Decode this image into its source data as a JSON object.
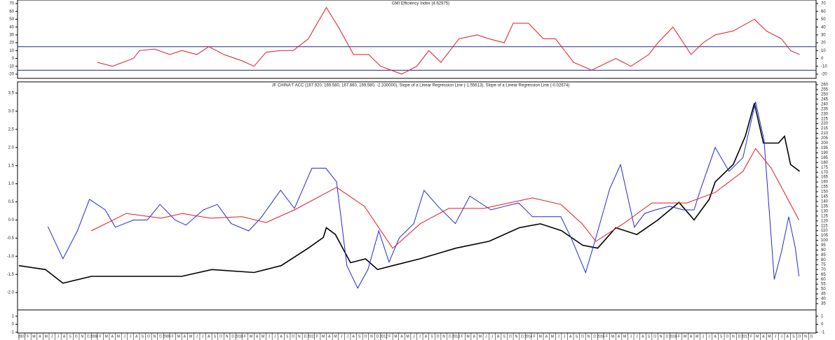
{
  "chart_data": [
    {
      "type": "line",
      "title": "GMI Efficiency Index (4.62975)",
      "ylim": [
        -25.4,
        74.5
      ],
      "yticks": [
        70,
        60,
        50,
        40,
        30,
        20,
        10,
        0,
        -10,
        -20
      ],
      "hlines": [
        15,
        -15
      ],
      "hline_color": "#1f2a8c",
      "series": [
        {
          "name": "GMI Efficiency Index",
          "color": "#e31a1c",
          "x": [
            13,
            15.5,
            19,
            20,
            22.5,
            25,
            27,
            29.5,
            31.5,
            34,
            37,
            39,
            41,
            43.5,
            45.5,
            48,
            51,
            53,
            55.5,
            58,
            60,
            63.5,
            66,
            68,
            70,
            73,
            76,
            78,
            80.5,
            82,
            84.5,
            87,
            89,
            92,
            95,
            99,
            101.5,
            104.5,
            106,
            108.5,
            111.5,
            113.5,
            115.5,
            118.5,
            122,
            124,
            126.5,
            128,
            129.5
          ],
          "values": [
            -5,
            -10,
            0,
            10,
            12,
            5,
            10,
            5,
            15,
            5,
            -3,
            -10,
            8,
            10,
            10,
            25,
            65,
            40,
            5,
            5,
            -10,
            -20,
            -10,
            10,
            -5,
            25,
            30,
            25,
            20,
            45,
            45,
            25,
            25,
            -5,
            -15,
            0,
            -10,
            5,
            20,
            40,
            5,
            20,
            30,
            35,
            50,
            35,
            25,
            10,
            5
          ]
        }
      ]
    },
    {
      "type": "line",
      "title": "JF CHINA T ACC (167.920, 169.580, 167.660, 169.580, -2.330000), Slope of a Linear Regression Line (-1.55613), Slope of a Linear Regression Line (-0.02674)",
      "ylim": [
        -2.48,
        3.81
      ],
      "yticks": [
        {
          "value": -2,
          "label": "-2.0"
        },
        -1.5,
        {
          "value": -1,
          "label": "-1.0"
        },
        -0.5,
        {
          "value": 0,
          "label": "0.0"
        },
        0.5,
        {
          "value": 1,
          "label": "1.0"
        },
        1.5,
        {
          "value": 2,
          "label": "2.0"
        },
        2.5,
        {
          "value": 3,
          "label": "3.0"
        },
        3.5
      ],
      "y2lim": [
        28.5,
        262.9
      ],
      "y2ticks": [
        35,
        40,
        45,
        50,
        55,
        60,
        65,
        70,
        75,
        80,
        85,
        90,
        95,
        100,
        105,
        110,
        115,
        120,
        125,
        130,
        135,
        140,
        145,
        150,
        155,
        160,
        165,
        170,
        175,
        180,
        185,
        190,
        195,
        200,
        205,
        210,
        215,
        220,
        225,
        230,
        235,
        240,
        245,
        250,
        255,
        260
      ],
      "series": [
        {
          "name": "JF CHINA T ACC",
          "color": "#000000",
          "axis": "y2",
          "x": [
            0,
            4.4,
            7.3,
            12,
            20,
            27,
            32,
            39,
            43.5,
            48,
            50.5,
            51,
            52.5,
            55,
            57.5,
            59.5,
            62,
            66.5,
            72.5,
            78,
            83,
            86.5,
            90,
            93.5,
            96,
            99,
            102.5,
            106,
            109.5,
            112,
            114.5,
            115.5,
            118.5,
            120.5,
            122,
            123.5,
            126,
            127,
            128,
            129.5
          ],
          "values": [
            74,
            70,
            56,
            63,
            63,
            63,
            70,
            67,
            74,
            92,
            103,
            113,
            106,
            77,
            81,
            70,
            74,
            81,
            92,
            99,
            113,
            117,
            110,
            95,
            92,
            113,
            106,
            121,
            139,
            121,
            142,
            160,
            178,
            207,
            241,
            200,
            200,
            207,
            178,
            171
          ]
        },
        {
          "name": "Slope of a Linear Regression Line (-1.55613)",
          "color": "#1f2ad4",
          "x": [
            4.8,
            7.3,
            9.7,
            11.7,
            14.3,
            16,
            19,
            21.3,
            23.4,
            25.9,
            27.7,
            30.6,
            32.9,
            35.2,
            38.1,
            40.1,
            43.4,
            45.7,
            48.6,
            50.9,
            52.7,
            54.4,
            56.2,
            57.9,
            59.7,
            61.4,
            63.1,
            65.5,
            67.2,
            69.5,
            72.4,
            74.8,
            78.3,
            80.6,
            82.9,
            85.2,
            87.6,
            89.9,
            91.6,
            94,
            95.7,
            98,
            99.8,
            102.1,
            103.8,
            105.6,
            107.9,
            110.2,
            112,
            113.1,
            115.5,
            117.8,
            120.1,
            122.2,
            123.6,
            125.3,
            126.5,
            127.7,
            128.8,
            129.4
          ],
          "values": [
            -0.18,
            -1.07,
            -0.3,
            0.57,
            0.28,
            -0.2,
            0,
            0,
            0.43,
            0,
            -0.14,
            0.28,
            0.43,
            -0.1,
            -0.3,
            0.05,
            0.82,
            0.32,
            1.43,
            1.43,
            1.05,
            -1.26,
            -1.88,
            -1.36,
            -0.3,
            -1.16,
            -0.49,
            -0.1,
            0.82,
            0.38,
            -0.1,
            0.66,
            0.28,
            0.38,
            0.47,
            0.09,
            0.09,
            0.09,
            -0.49,
            -1.45,
            -0.49,
            0.86,
            1.53,
            -0.2,
            0.18,
            0.28,
            0.38,
            0.28,
            0.28,
            0.86,
            2.0,
            1.34,
            1.72,
            3.26,
            2.2,
            -1.64,
            -0.87,
            0.09,
            -0.78,
            -1.55
          ]
        },
        {
          "name": "Slope of a Linear Regression Line (-0.02674)",
          "color": "#e31a1c",
          "x": [
            12,
            17.8,
            23.6,
            27.1,
            31.7,
            37,
            41,
            45.7,
            52.7,
            57.3,
            62,
            66.6,
            71.3,
            77.1,
            85.2,
            89.9,
            93.4,
            95.7,
            100.3,
            105,
            110.8,
            115.5,
            120.1,
            122.2,
            124.8,
            129.4
          ],
          "values": [
            -0.3,
            0.18,
            0.05,
            0.18,
            0.05,
            0.09,
            -0.07,
            0.28,
            0.9,
            0.38,
            -0.78,
            -0.1,
            0.32,
            0.32,
            0.61,
            0.43,
            -0.1,
            -0.59,
            -0.1,
            0.47,
            0.47,
            0.76,
            1.34,
            1.97,
            1.43,
            0
          ]
        }
      ]
    },
    {
      "type": "line",
      "ylim": [
        -1.09,
        1.78
      ],
      "yticks": [
        1,
        0,
        -1
      ],
      "xlim": [
        0,
        132
      ],
      "categories": [
        "2007",
        "F",
        "M",
        "A",
        "M",
        "J",
        "J",
        "A",
        "S",
        "O",
        "N",
        "D",
        "2008",
        "F",
        "M",
        "A",
        "M",
        "J",
        "J",
        "A",
        "S",
        "O",
        "N",
        "D",
        "2009",
        "F",
        "M",
        "A",
        "M",
        "J",
        "J",
        "A",
        "S",
        "O",
        "N",
        "D",
        "2010",
        "F",
        "M",
        "A",
        "M",
        "J",
        "J",
        "A",
        "S",
        "O",
        "N",
        "D",
        "2011",
        "F",
        "M",
        "A",
        "M",
        "J",
        "J",
        "A",
        "S",
        "O",
        "N",
        "D",
        "2012",
        "F",
        "M",
        "A",
        "M",
        "J",
        "J",
        "A",
        "S",
        "O",
        "N",
        "D",
        "2013",
        "F",
        "M",
        "A",
        "M",
        "J",
        "J",
        "A",
        "S",
        "O",
        "N",
        "D",
        "2014",
        "F",
        "M",
        "A",
        "M",
        "J",
        "J",
        "A",
        "S",
        "O",
        "N",
        "D",
        "2015",
        "F",
        "M",
        "A",
        "M",
        "J",
        "J",
        "A",
        "S",
        "O",
        "N",
        "D",
        "2016",
        "F",
        "M",
        "A",
        "M",
        "J",
        "J",
        "A",
        "S",
        "O",
        "N",
        "D",
        "2017",
        "F",
        "M",
        "A",
        "M",
        "J",
        "J",
        "A",
        "S",
        "O",
        "N",
        "D"
      ],
      "series": []
    }
  ]
}
